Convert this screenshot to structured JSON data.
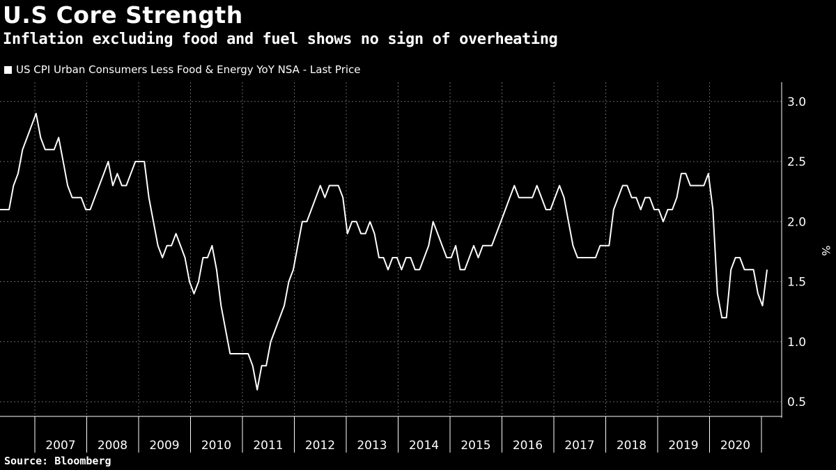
{
  "title": "U.S Core Strength",
  "subtitle": "Inflation excluding food and fuel shows no sign of overheating",
  "source": "Source: Bloomberg",
  "colors": {
    "background": "#000000",
    "line": "#ffffff",
    "grid": "#666666",
    "text": "#ffffff"
  },
  "chart_data": {
    "type": "line",
    "title": "U.S Core Strength",
    "subtitle": "Inflation excluding food and fuel shows no sign of overheating",
    "ylabel": "%",
    "xlabel": "",
    "ylim": [
      0.5,
      3.0
    ],
    "yticks": [
      0.5,
      1.0,
      1.5,
      2.0,
      2.5,
      3.0
    ],
    "ytick_labels": [
      "0.5",
      "1.0",
      "1.5",
      "2.0",
      "2.5",
      "3.0"
    ],
    "xtick_labels": [
      "2007",
      "2008",
      "2009",
      "2010",
      "2011",
      "2012",
      "2013",
      "2014",
      "2015",
      "2016",
      "2017",
      "2018",
      "2019",
      "2020"
    ],
    "grid": true,
    "legend": "top-left",
    "x_unit": "month",
    "start": "2006-01",
    "series": [
      {
        "name": "US CPI Urban Consumers Less Food & Energy YoY NSA - Last Price",
        "values": [
          2.1,
          2.1,
          2.1,
          2.3,
          2.4,
          2.6,
          2.7,
          2.8,
          2.9,
          2.7,
          2.6,
          2.6,
          2.6,
          2.7,
          2.5,
          2.3,
          2.2,
          2.2,
          2.2,
          2.1,
          2.1,
          2.2,
          2.3,
          2.4,
          2.5,
          2.3,
          2.4,
          2.3,
          2.3,
          2.4,
          2.5,
          2.5,
          2.5,
          2.2,
          2.0,
          1.8,
          1.7,
          1.8,
          1.8,
          1.9,
          1.8,
          1.7,
          1.5,
          1.4,
          1.5,
          1.7,
          1.7,
          1.8,
          1.6,
          1.3,
          1.1,
          0.9,
          0.9,
          0.9,
          0.9,
          0.9,
          0.8,
          0.6,
          0.8,
          0.8,
          1.0,
          1.1,
          1.2,
          1.3,
          1.5,
          1.6,
          1.8,
          2.0,
          2.0,
          2.1,
          2.2,
          2.3,
          2.2,
          2.3,
          2.3,
          2.3,
          2.2,
          1.9,
          2.0,
          2.0,
          1.9,
          1.9,
          2.0,
          1.9,
          1.7,
          1.7,
          1.6,
          1.7,
          1.7,
          1.6,
          1.7,
          1.7,
          1.6,
          1.6,
          1.7,
          1.8,
          2.0,
          1.9,
          1.8,
          1.7,
          1.7,
          1.8,
          1.6,
          1.6,
          1.7,
          1.8,
          1.7,
          1.8,
          1.8,
          1.8,
          1.9,
          2.0,
          2.1,
          2.2,
          2.3,
          2.2,
          2.2,
          2.2,
          2.2,
          2.3,
          2.2,
          2.1,
          2.1,
          2.2,
          2.3,
          2.2,
          2.0,
          1.8,
          1.7,
          1.7,
          1.7,
          1.7,
          1.7,
          1.8,
          1.8,
          1.8,
          2.1,
          2.2,
          2.3,
          2.3,
          2.2,
          2.2,
          2.1,
          2.2,
          2.2,
          2.1,
          2.1,
          2.0,
          2.1,
          2.1,
          2.2,
          2.4,
          2.4,
          2.3,
          2.3,
          2.3,
          2.3,
          2.4,
          2.1,
          1.4,
          1.2,
          1.2,
          1.6,
          1.7,
          1.7,
          1.6,
          1.6,
          1.6,
          1.4,
          1.3,
          1.6
        ]
      }
    ]
  }
}
